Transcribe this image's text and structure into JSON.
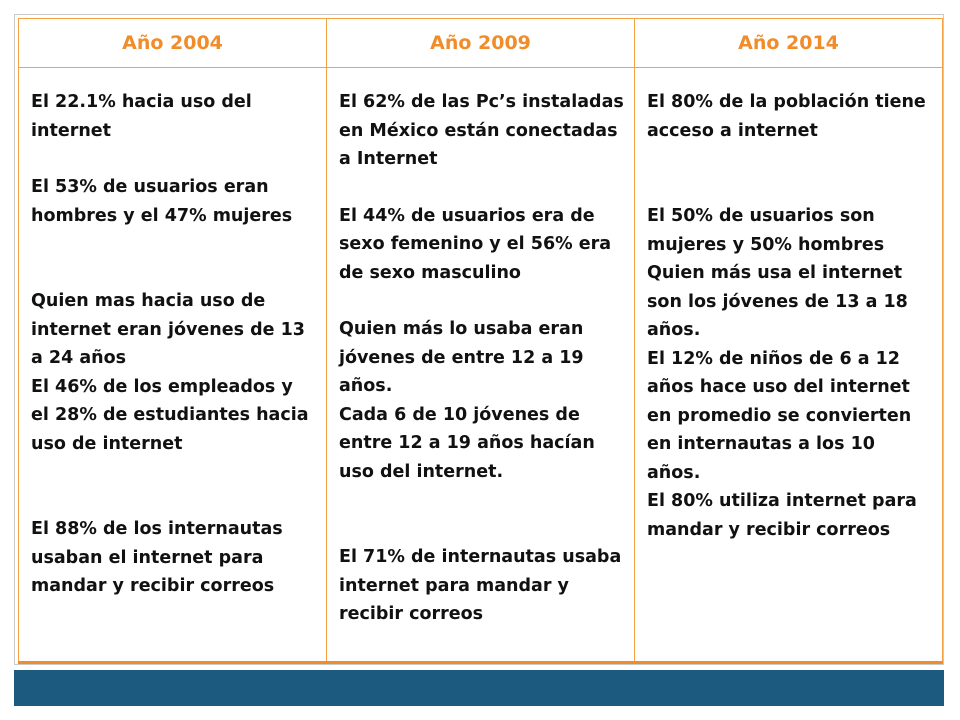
{
  "columns": [
    {
      "header": "Año 2004",
      "paragraphs": [
        "El 22.1% hacia uso del internet",
        "El 53% de usuarios eran hombres y el 47% mujeres",
        "Quien mas hacia uso de internet eran jóvenes de 13 a 24 años",
        "El 46% de los empleados y el 28% de estudiantes hacia uso de internet",
        "El 88% de los internautas usaban el internet para mandar y recibir correos"
      ]
    },
    {
      "header": "Año 2009",
      "paragraphs": [
        "El 62% de las Pc’s instaladas en México están conectadas a Internet",
        "El 44% de usuarios era de sexo femenino y el 56% era de sexo masculino",
        "Quien más lo usaba eran jóvenes de entre 12 a 19 años.",
        "Cada 6 de 10 jóvenes de entre 12 a 19 años hacían uso del internet.",
        "El 71% de internautas usaba internet para mandar y recibir correos"
      ]
    },
    {
      "header": "Año 2014",
      "paragraphs": [
        "El 80% de la población tiene acceso a internet",
        "El 50% de usuarios son mujeres y 50% hombres",
        "Quien más usa el internet son los jóvenes de 13 a 18 años.",
        "El 12% de niños de 6 a 12 años hace uso del internet en promedio se convierten en internautas a los 10 años.",
        "El 80% utiliza internet para mandar y recibir correos"
      ]
    }
  ],
  "colors": {
    "header_text": "#f08c2a",
    "border": "#f4a244",
    "bottom_bar": "#1c5a80"
  }
}
